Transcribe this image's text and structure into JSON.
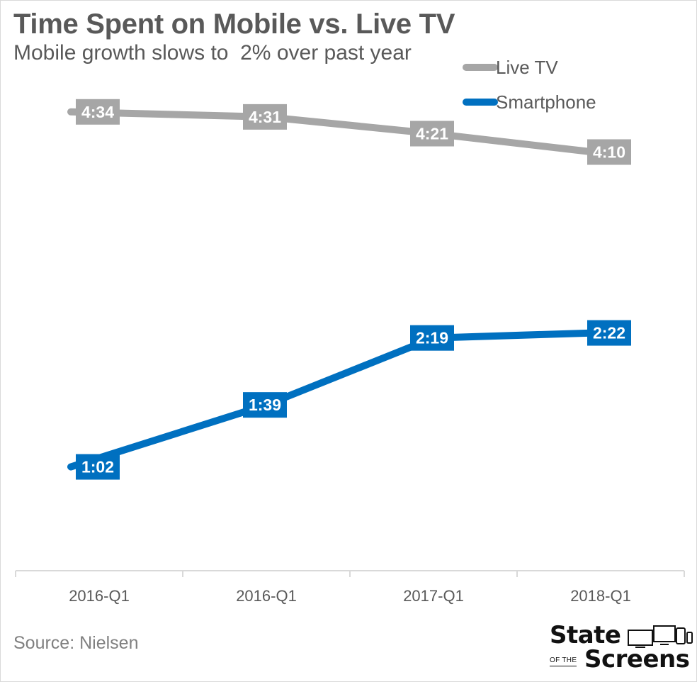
{
  "header": {
    "title": "Time Spent on Mobile vs. Live TV",
    "subtitle": "Mobile growth slows to  2% over past year"
  },
  "footer": {
    "source": "Source: Nielsen",
    "logo": {
      "line1": "State",
      "of_the": "OF THE",
      "line2": "Screens"
    }
  },
  "colors": {
    "live_tv": "#A6A6A6",
    "smartphone": "#0070C0",
    "axis": "#D9D9D9",
    "tick_text": "#595959"
  },
  "chart_data": {
    "type": "line",
    "title": "Time Spent on Mobile vs. Live TV",
    "subtitle": "Mobile growth slows to  2% over past year",
    "categories": [
      "2016-Q1",
      "2016-Q1",
      "2017-Q1",
      "2018-Q1"
    ],
    "xlabel": "",
    "ylabel": "",
    "ylim_minutes": [
      0,
      290
    ],
    "grid": false,
    "legend": "top-right",
    "series": [
      {
        "name": "Live TV",
        "color": "#A6A6A6",
        "minutes": [
          274,
          271,
          261,
          250
        ],
        "labels": [
          "4:34",
          "4:31",
          "4:21",
          "4:10"
        ]
      },
      {
        "name": "Smartphone",
        "color": "#0070C0",
        "minutes": [
          62,
          99,
          139,
          142
        ],
        "labels": [
          "1:02",
          "1:39",
          "2:19",
          "2:22"
        ]
      }
    ]
  }
}
